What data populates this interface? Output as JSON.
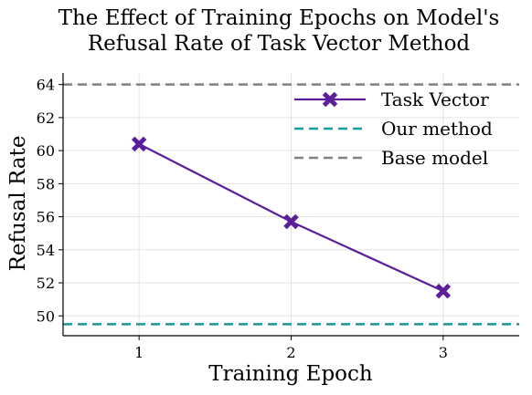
{
  "chart_data": {
    "type": "line",
    "title": "The Effect of Training Epochs on Model's Refusal Rate of Task Vector Method",
    "title_lines": [
      "The Effect of Training Epochs on Model's",
      "Refusal Rate of Task Vector Method"
    ],
    "xlabel": "Training Epoch",
    "ylabel": "Refusal Rate",
    "x": [
      1,
      2,
      3
    ],
    "x_ticks": [
      "1",
      "2",
      "3"
    ],
    "xlim": [
      0.5,
      3.5
    ],
    "ylim": [
      48.8,
      64.7
    ],
    "y_ticks": [
      "50",
      "52",
      "54",
      "56",
      "58",
      "60",
      "62",
      "64"
    ],
    "grid": true,
    "legend_position": "top-right",
    "series": [
      {
        "name": "Task Vector",
        "values": [
          60.4,
          55.7,
          51.5
        ],
        "color": "#5b1f9c",
        "style": "solid",
        "marker": "x"
      }
    ],
    "reference_lines": [
      {
        "name": "Our method",
        "value": 49.5,
        "color": "#1b9a95",
        "style": "dashed"
      },
      {
        "name": "Base model",
        "value": 64.0,
        "color": "#808080",
        "style": "dashed"
      }
    ]
  }
}
